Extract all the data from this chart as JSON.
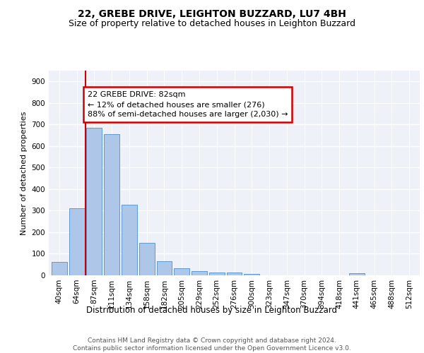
{
  "title1": "22, GREBE DRIVE, LEIGHTON BUZZARD, LU7 4BH",
  "title2": "Size of property relative to detached houses in Leighton Buzzard",
  "xlabel": "Distribution of detached houses by size in Leighton Buzzard",
  "ylabel": "Number of detached properties",
  "footnote": "Contains HM Land Registry data © Crown copyright and database right 2024.\nContains public sector information licensed under the Open Government Licence v3.0.",
  "bar_labels": [
    "40sqm",
    "64sqm",
    "87sqm",
    "111sqm",
    "134sqm",
    "158sqm",
    "182sqm",
    "205sqm",
    "229sqm",
    "252sqm",
    "276sqm",
    "300sqm",
    "323sqm",
    "347sqm",
    "370sqm",
    "394sqm",
    "418sqm",
    "441sqm",
    "465sqm",
    "488sqm",
    "512sqm"
  ],
  "bar_values": [
    63,
    310,
    686,
    654,
    329,
    152,
    65,
    32,
    21,
    13,
    13,
    8,
    0,
    0,
    0,
    0,
    0,
    10,
    0,
    0,
    0
  ],
  "bar_color": "#aec6e8",
  "bar_edge_color": "#5b9bd5",
  "annotation_text": "22 GREBE DRIVE: 82sqm\n← 12% of detached houses are smaller (276)\n88% of semi-detached houses are larger (2,030) →",
  "annotation_box_color": "#ffffff",
  "annotation_box_edge_color": "#cc0000",
  "vline_color": "#cc0000",
  "ylim": [
    0,
    950
  ],
  "yticks": [
    0,
    100,
    200,
    300,
    400,
    500,
    600,
    700,
    800,
    900
  ],
  "background_color": "#eef2f8",
  "title1_fontsize": 10,
  "title2_fontsize": 9,
  "xlabel_fontsize": 8.5,
  "ylabel_fontsize": 8,
  "tick_fontsize": 7.5,
  "annotation_fontsize": 8,
  "footnote_fontsize": 6.5
}
